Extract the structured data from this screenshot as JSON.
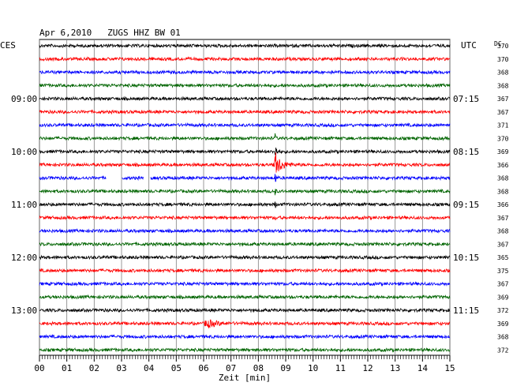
{
  "chart_data": {
    "type": "line",
    "title": "Apr 6,2010   ZUGS HHZ BW 01",
    "left_label": "CES",
    "right_label": "UTC",
    "dc_label": "DC",
    "xlabel": "Zeit [min]",
    "x_ticks": [
      "00",
      "01",
      "02",
      "03",
      "04",
      "05",
      "06",
      "07",
      "08",
      "09",
      "10",
      "11",
      "12",
      "13",
      "14",
      "15"
    ],
    "xlim": [
      0,
      15
    ],
    "left_time_labels": [
      {
        "trace": 4,
        "text": "09:00"
      },
      {
        "trace": 8,
        "text": "10:00"
      },
      {
        "trace": 12,
        "text": "11:00"
      },
      {
        "trace": 16,
        "text": "12:00"
      },
      {
        "trace": 20,
        "text": "13:00"
      }
    ],
    "right_time_labels": [
      {
        "trace": 4,
        "text": "07:15"
      },
      {
        "trace": 8,
        "text": "08:15"
      },
      {
        "trace": 12,
        "text": "09:15"
      },
      {
        "trace": 16,
        "text": "10:15"
      },
      {
        "trace": 20,
        "text": "11:15"
      }
    ],
    "colors": [
      "#000000",
      "#ff0000",
      "#0000ff",
      "#006400"
    ],
    "dc_values": [
      "370",
      "370",
      "368",
      "368",
      "367",
      "367",
      "371",
      "370",
      "369",
      "366",
      "368",
      "368",
      "366",
      "367",
      "368",
      "367",
      "365",
      "375",
      "367",
      "369",
      "372",
      "369",
      "368",
      "372"
    ],
    "events": [
      {
        "trace": 9,
        "start_min": 8.55,
        "end_min": 9.6,
        "amplitude": 14
      },
      {
        "trace": 8,
        "start_min": 8.58,
        "end_min": 8.9,
        "amplitude": 9
      },
      {
        "trace": 10,
        "start_min": 8.6,
        "end_min": 8.75,
        "amplitude": 10
      },
      {
        "trace": 11,
        "start_min": 8.6,
        "end_min": 8.72,
        "amplitude": 6
      },
      {
        "trace": 12,
        "start_min": 8.6,
        "end_min": 8.72,
        "amplitude": 6
      },
      {
        "trace": 13,
        "start_min": 8.6,
        "end_min": 8.7,
        "amplitude": 5
      },
      {
        "trace": 7,
        "start_min": 8.6,
        "end_min": 8.72,
        "amplitude": 6
      },
      {
        "trace": 21,
        "start_min": 6.0,
        "end_min": 7.5,
        "amplitude": 5
      }
    ],
    "gaps": [
      {
        "trace": 10,
        "start_min": 2.45,
        "end_min": 3.0
      },
      {
        "trace": 10,
        "start_min": 3.8,
        "end_min": 4.05
      }
    ],
    "grid": true
  }
}
